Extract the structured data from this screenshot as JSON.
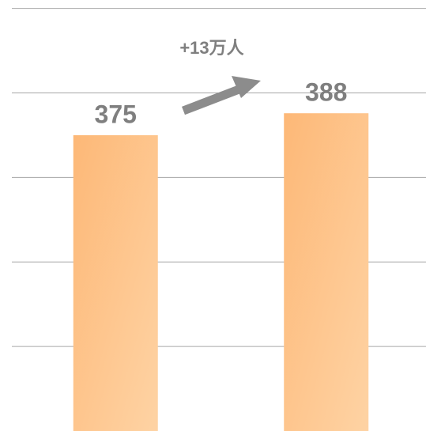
{
  "chart_data": {
    "type": "bar",
    "categories": [
      null,
      null
    ],
    "values": [
      375,
      388
    ],
    "annotation": "+13万人",
    "ylim": [
      200,
      455
    ],
    "yticks": [
      250,
      300,
      350,
      400,
      450
    ],
    "grid": true
  }
}
